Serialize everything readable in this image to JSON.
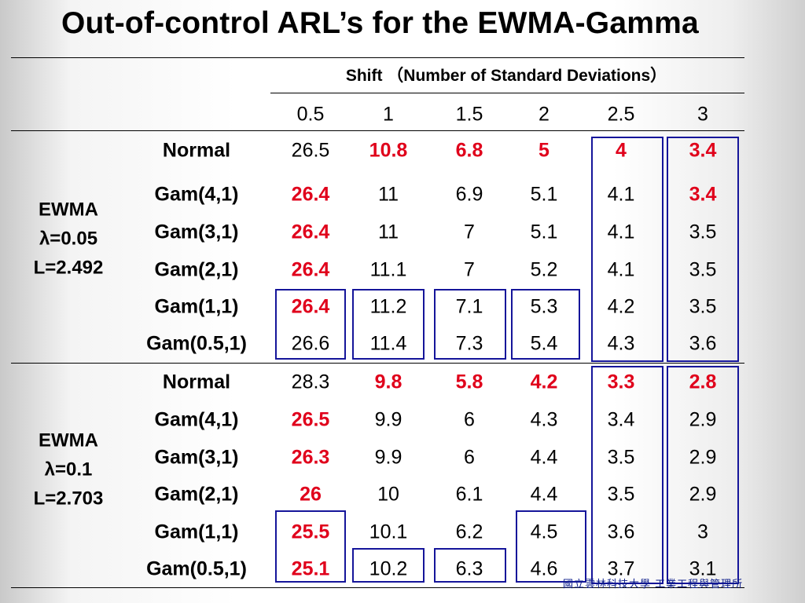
{
  "title": "Out-of-control ARL’s for the EWMA-Gamma",
  "footer": "國立雲林科技大學 工業工程與管理所",
  "table": {
    "shift_header": "Shift （Number of Standard Deviations）",
    "columns": [
      "0.5",
      "1",
      "1.5",
      "2",
      "2.5",
      "3"
    ],
    "groups": [
      {
        "label_lines": [
          "EWMA",
          "λ=0.05",
          "L=2.492"
        ],
        "rows": [
          {
            "dist": "Normal",
            "values": [
              "26.5",
              "10.8",
              "6.8",
              "5",
              "4",
              "3.4"
            ],
            "red": [
              false,
              true,
              true,
              true,
              true,
              true
            ]
          },
          {
            "dist": "Gam(4,1)",
            "values": [
              "26.4",
              "11",
              "6.9",
              "5.1",
              "4.1",
              "3.4"
            ],
            "red": [
              true,
              false,
              false,
              false,
              false,
              true
            ]
          },
          {
            "dist": "Gam(3,1)",
            "values": [
              "26.4",
              "11",
              "7",
              "5.1",
              "4.1",
              "3.5"
            ],
            "red": [
              true,
              false,
              false,
              false,
              false,
              false
            ]
          },
          {
            "dist": "Gam(2,1)",
            "values": [
              "26.4",
              "11.1",
              "7",
              "5.2",
              "4.1",
              "3.5"
            ],
            "red": [
              true,
              false,
              false,
              false,
              false,
              false
            ]
          },
          {
            "dist": "Gam(1,1)",
            "values": [
              "26.4",
              "11.2",
              "7.1",
              "5.3",
              "4.2",
              "3.5"
            ],
            "red": [
              true,
              false,
              false,
              false,
              false,
              false
            ]
          },
          {
            "dist": "Gam(0.5,1)",
            "values": [
              "26.6",
              "11.4",
              "7.3",
              "5.4",
              "4.3",
              "3.6"
            ],
            "red": [
              false,
              false,
              false,
              false,
              false,
              false
            ]
          }
        ]
      },
      {
        "label_lines": [
          "EWMA",
          "λ=0.1",
          "L=2.703"
        ],
        "rows": [
          {
            "dist": "Normal",
            "values": [
              "28.3",
              "9.8",
              "5.8",
              "4.2",
              "3.3",
              "2.8"
            ],
            "red": [
              false,
              true,
              true,
              true,
              true,
              true
            ]
          },
          {
            "dist": "Gam(4,1)",
            "values": [
              "26.5",
              "9.9",
              "6",
              "4.3",
              "3.4",
              "2.9"
            ],
            "red": [
              true,
              false,
              false,
              false,
              false,
              false
            ]
          },
          {
            "dist": "Gam(3,1)",
            "values": [
              "26.3",
              "9.9",
              "6",
              "4.4",
              "3.5",
              "2.9"
            ],
            "red": [
              true,
              false,
              false,
              false,
              false,
              false
            ]
          },
          {
            "dist": "Gam(2,1)",
            "values": [
              "26",
              "10",
              "6.1",
              "4.4",
              "3.5",
              "2.9"
            ],
            "red": [
              true,
              false,
              false,
              false,
              false,
              false
            ]
          },
          {
            "dist": "Gam(1,1)",
            "values": [
              "25.5",
              "10.1",
              "6.2",
              "4.5",
              "3.6",
              "3"
            ],
            "red": [
              true,
              false,
              false,
              false,
              false,
              false
            ]
          },
          {
            "dist": "Gam(0.5,1)",
            "values": [
              "25.1",
              "10.2",
              "6.3",
              "4.6",
              "3.7",
              "3.1"
            ],
            "red": [
              true,
              false,
              false,
              false,
              false,
              false
            ]
          }
        ]
      }
    ]
  },
  "colors": {
    "highlight_text": "#e0001b",
    "box_border": "#15159a"
  }
}
